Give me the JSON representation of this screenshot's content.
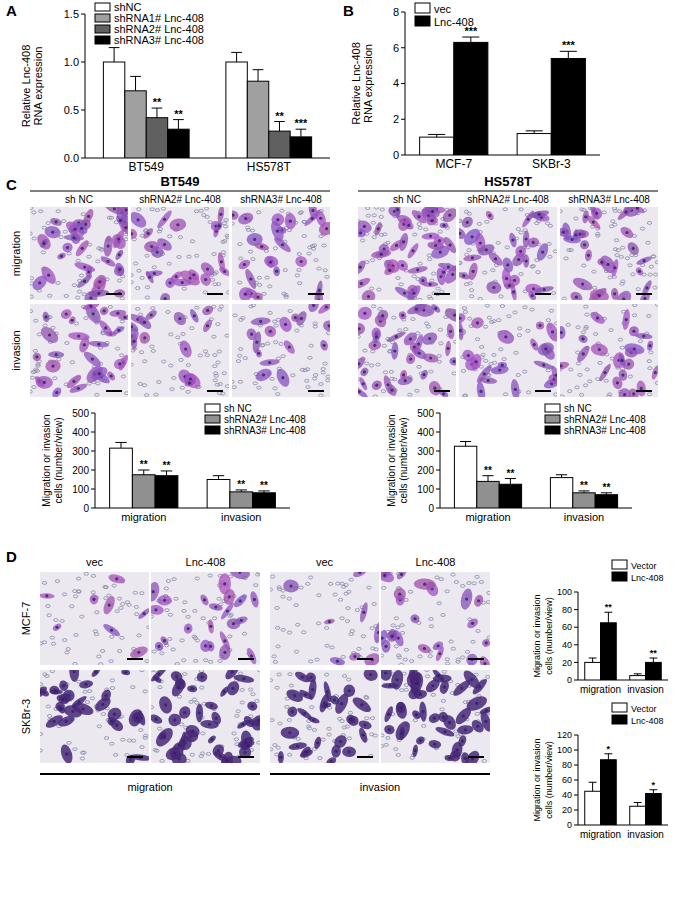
{
  "panel_labels": [
    "A",
    "B",
    "C",
    "D"
  ],
  "image_grid_c": {
    "groups": [
      {
        "title": "BT549",
        "columns": [
          "sh NC",
          "shRNA2# Lnc-408",
          "shRNA3# Lnc-408"
        ]
      },
      {
        "title": "HS578T",
        "columns": [
          "sh NC",
          "shRNA2# Lnc-408",
          "shRNA3# Lnc-408"
        ]
      }
    ],
    "rows": [
      "migration",
      "invasion"
    ]
  },
  "image_grid_d": {
    "columns": [
      "vec",
      "Lnc-408",
      "vec",
      "Lnc-408"
    ],
    "rows": [
      "MCF-7",
      "SKBr-3"
    ],
    "groups": [
      "migration",
      "invasion"
    ]
  },
  "chart_data": [
    {
      "type": "bar",
      "y_label": [
        "Relative Lnc-408",
        "RNA expression"
      ],
      "categories": [
        "BT549",
        "HS578T"
      ],
      "series": [
        {
          "name": "shNC",
          "color": "#ffffff",
          "values": [
            1.0,
            1.0
          ],
          "errors": [
            0.15,
            0.1
          ],
          "significance": [
            null,
            null
          ]
        },
        {
          "name": "shRNA1# Lnc-408",
          "color": "#a0a0a0",
          "values": [
            0.7,
            0.8
          ],
          "errors": [
            0.15,
            0.12
          ],
          "significance": [
            null,
            null
          ]
        },
        {
          "name": "shRNA2# Lnc-408",
          "color": "#606060",
          "values": [
            0.42,
            0.28
          ],
          "errors": [
            0.1,
            0.1
          ],
          "significance": [
            "**",
            "**"
          ]
        },
        {
          "name": "shRNA3# Lnc-408",
          "color": "#000000",
          "values": [
            0.3,
            0.22
          ],
          "errors": [
            0.1,
            0.08
          ],
          "significance": [
            "**",
            "***"
          ]
        }
      ],
      "ylim": [
        0,
        1.5
      ],
      "yticks": [
        {
          "value": 0,
          "label": "0.0"
        },
        {
          "value": 0.5,
          "label": "0.5"
        },
        {
          "value": 1,
          "label": "1.0"
        },
        {
          "value": 1.5,
          "label": "1.5"
        }
      ],
      "grid": false,
      "legend": "top-left"
    },
    {
      "type": "bar",
      "y_label": [
        "Relative Lnc-408",
        "RNA expression"
      ],
      "categories": [
        "MCF-7",
        "SKBr-3"
      ],
      "series": [
        {
          "name": "vec",
          "color": "#ffffff",
          "values": [
            1.0,
            1.2
          ],
          "errors": [
            0.15,
            0.15
          ],
          "significance": [
            null,
            null
          ]
        },
        {
          "name": "Lnc-408",
          "color": "#000000",
          "values": [
            6.3,
            5.4
          ],
          "errors": [
            0.3,
            0.4
          ],
          "significance": [
            "***",
            "***"
          ]
        }
      ],
      "ylim": [
        0,
        8
      ],
      "yticks": [
        0,
        2,
        4,
        6,
        8
      ],
      "grid": false,
      "legend": "top-left"
    },
    {
      "type": "bar",
      "y_label": [
        "Migration or invasion",
        "cells (number/view)"
      ],
      "categories": [
        "migration",
        "invasion"
      ],
      "series": [
        {
          "name": "sh NC",
          "color": "#ffffff",
          "values": [
            315,
            150
          ],
          "errors": [
            30,
            20
          ],
          "significance": [
            null,
            null
          ]
        },
        {
          "name": "shRNA2# Lnc-408",
          "color": "#909090",
          "values": [
            175,
            85
          ],
          "errors": [
            25,
            10
          ],
          "significance": [
            "**",
            "**"
          ]
        },
        {
          "name": "shRNA3# Lnc-408",
          "color": "#000000",
          "values": [
            170,
            80
          ],
          "errors": [
            25,
            10
          ],
          "significance": [
            "**",
            "**"
          ]
        }
      ],
      "ylim": [
        0,
        500
      ],
      "yticks": [
        0,
        100,
        200,
        300,
        400,
        500
      ],
      "grid": false,
      "legend": "top-right"
    },
    {
      "type": "bar",
      "y_label": [
        "Migration or invasion",
        "cells (number/view)"
      ],
      "categories": [
        "migration",
        "invasion"
      ],
      "series": [
        {
          "name": "sh NC",
          "color": "#ffffff",
          "values": [
            325,
            160
          ],
          "errors": [
            25,
            15
          ],
          "significance": [
            null,
            null
          ]
        },
        {
          "name": "shRNA2# Lnc-408",
          "color": "#909090",
          "values": [
            140,
            80
          ],
          "errors": [
            30,
            10
          ],
          "significance": [
            "**",
            "**"
          ]
        },
        {
          "name": "shRNA3# Lnc-408",
          "color": "#000000",
          "values": [
            125,
            70
          ],
          "errors": [
            30,
            10
          ],
          "significance": [
            "**",
            "**"
          ]
        }
      ],
      "ylim": [
        0,
        500
      ],
      "yticks": [
        0,
        100,
        200,
        300,
        400,
        500
      ],
      "grid": false,
      "legend": "top-right"
    },
    {
      "type": "bar",
      "y_label": [
        "Migration or invasion",
        "cells (number/view)"
      ],
      "categories": [
        "migration",
        "invasion"
      ],
      "series": [
        {
          "name": "Vector",
          "color": "#ffffff",
          "values": [
            20,
            5
          ],
          "errors": [
            5,
            2
          ],
          "significance": [
            null,
            null
          ]
        },
        {
          "name": "Lnc-408",
          "color": "#000000",
          "values": [
            65,
            20
          ],
          "errors": [
            12,
            5
          ],
          "significance": [
            "**",
            "**"
          ]
        }
      ],
      "ylim": [
        0,
        100
      ],
      "yticks": [
        0,
        20,
        40,
        60,
        80,
        100
      ],
      "grid": false,
      "legend": "top-right"
    },
    {
      "type": "bar",
      "y_label": [
        "Migration or invasion",
        "cells (number/view)"
      ],
      "categories": [
        "migration",
        "invasion"
      ],
      "series": [
        {
          "name": "Vector",
          "color": "#ffffff",
          "values": [
            45,
            25
          ],
          "errors": [
            12,
            5
          ],
          "significance": [
            null,
            null
          ]
        },
        {
          "name": "Lnc-408",
          "color": "#000000",
          "values": [
            87,
            42
          ],
          "errors": [
            8,
            5
          ],
          "significance": [
            "*",
            "*"
          ]
        }
      ],
      "ylim": [
        0,
        120
      ],
      "yticks": [
        0,
        20,
        40,
        60,
        80,
        100,
        120
      ],
      "grid": false,
      "legend": "top-right"
    }
  ]
}
